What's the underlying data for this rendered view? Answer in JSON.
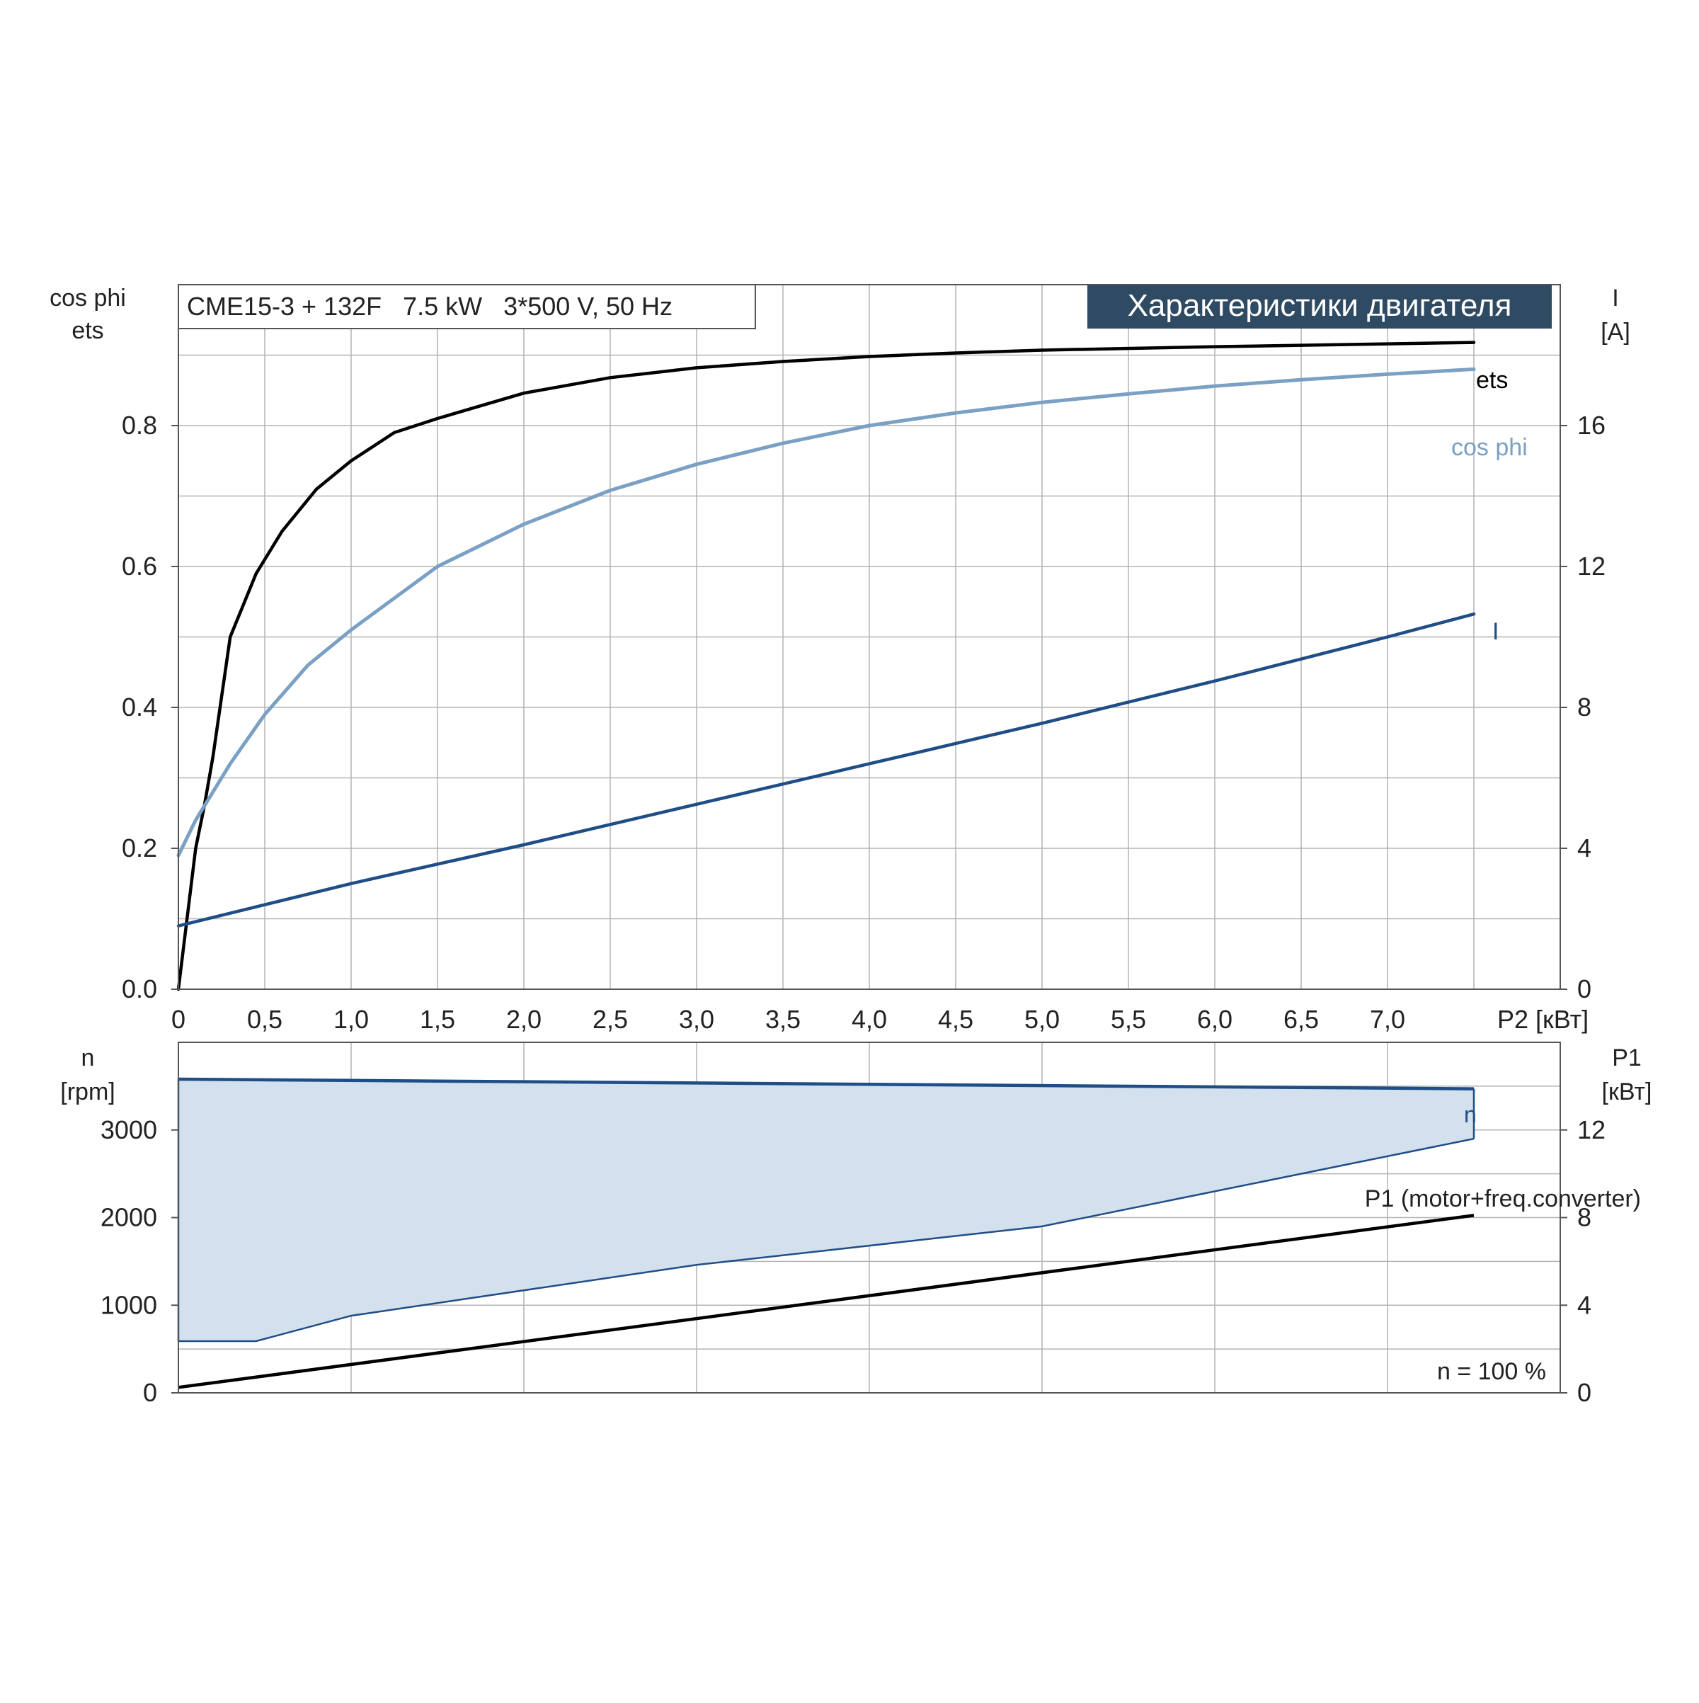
{
  "colors": {
    "ets": "#000000",
    "cos_phi": "#7aa0c4",
    "current": "#1f4d86",
    "speed": "#1f4d86",
    "speed_fill": "#d3e0ee",
    "p1": "#000000",
    "grid": "#b4b4b4",
    "title_bg": "#2f4a63",
    "title_text": "#ffffff",
    "cos_phi_label": "#7aa0c4",
    "current_label": "#1f4d86"
  },
  "chart_data": [
    {
      "type": "line",
      "header": "CME15-3 + 132F   7.5 kW   3*500 V, 50 Hz",
      "title": "Характеристики двигателя",
      "xlabel": "P2 [кВт]",
      "xticks": [
        "0",
        "0,5",
        "1,0",
        "1,5",
        "2,0",
        "2,5",
        "3,0",
        "3,5",
        "4,0",
        "4,5",
        "5,0",
        "5,5",
        "6,0",
        "6,5",
        "7,0"
      ],
      "xlim": [
        0,
        8
      ],
      "ylabel_left": [
        "cos phi",
        "ets"
      ],
      "ylim_left": [
        0,
        1.0
      ],
      "yticks_left": [
        "0.0",
        "0.2",
        "0.4",
        "0.6",
        "0.8"
      ],
      "ylabel_right": [
        "I",
        "[A]"
      ],
      "ylim_right": [
        0,
        20
      ],
      "yticks_right": [
        "0",
        "4",
        "8",
        "12",
        "16"
      ],
      "grid": true,
      "series": [
        {
          "name": "ets",
          "axis": "left",
          "x": [
            0,
            0.05,
            0.1,
            0.15,
            0.2,
            0.3,
            0.45,
            0.6,
            0.8,
            1.0,
            1.25,
            1.5,
            2.0,
            2.5,
            3.0,
            3.5,
            4.0,
            4.5,
            5.0,
            6.0,
            7.0,
            7.5
          ],
          "y": [
            0,
            0.1,
            0.2,
            0.26,
            0.33,
            0.5,
            0.59,
            0.65,
            0.71,
            0.75,
            0.79,
            0.81,
            0.846,
            0.868,
            0.882,
            0.891,
            0.898,
            0.903,
            0.907,
            0.912,
            0.916,
            0.918
          ]
        },
        {
          "name": "cos phi",
          "axis": "left",
          "x": [
            0,
            0.1,
            0.2,
            0.3,
            0.5,
            0.75,
            1.0,
            1.5,
            2.0,
            2.5,
            3.0,
            3.5,
            4.0,
            4.5,
            5.0,
            5.5,
            6.0,
            6.5,
            7.0,
            7.5
          ],
          "y": [
            0.19,
            0.24,
            0.28,
            0.32,
            0.39,
            0.46,
            0.51,
            0.6,
            0.66,
            0.708,
            0.745,
            0.775,
            0.8,
            0.818,
            0.833,
            0.845,
            0.856,
            0.865,
            0.873,
            0.88
          ]
        },
        {
          "name": "I",
          "axis": "right",
          "x": [
            0,
            1.0,
            2.0,
            3.0,
            4.0,
            5.0,
            6.0,
            7.0,
            7.5
          ],
          "y": [
            1.8,
            3.0,
            4.1,
            5.25,
            6.4,
            7.55,
            8.75,
            10.0,
            10.65
          ]
        }
      ],
      "series_labels": [
        "ets",
        "cos phi",
        "I"
      ]
    },
    {
      "type": "area",
      "xlim": [
        0,
        8
      ],
      "ylabel_left": [
        "n",
        "[rpm]"
      ],
      "ylim_left": [
        0,
        4000
      ],
      "yticks_left": [
        "0",
        "1000",
        "2000",
        "3000"
      ],
      "ylabel_right": [
        "P1",
        "[кВт]"
      ],
      "ylim_right": [
        0,
        16
      ],
      "yticks_right": [
        "0",
        "4",
        "8",
        "12"
      ],
      "grid": true,
      "annotation": "n = 100 %",
      "series": [
        {
          "name": "n",
          "axis": "left",
          "x_upper": [
            0,
            7.5
          ],
          "y_upper": [
            3580,
            3470
          ],
          "x_lower": [
            0,
            0.45,
            1.0,
            3.0,
            5.0,
            7.5
          ],
          "y_lower": [
            590,
            590,
            880,
            1460,
            1900,
            2900
          ]
        },
        {
          "name": "P1 (motor+freq.converter)",
          "axis": "right",
          "x": [
            0,
            7.5
          ],
          "y": [
            0.25,
            8.1
          ]
        }
      ]
    }
  ]
}
